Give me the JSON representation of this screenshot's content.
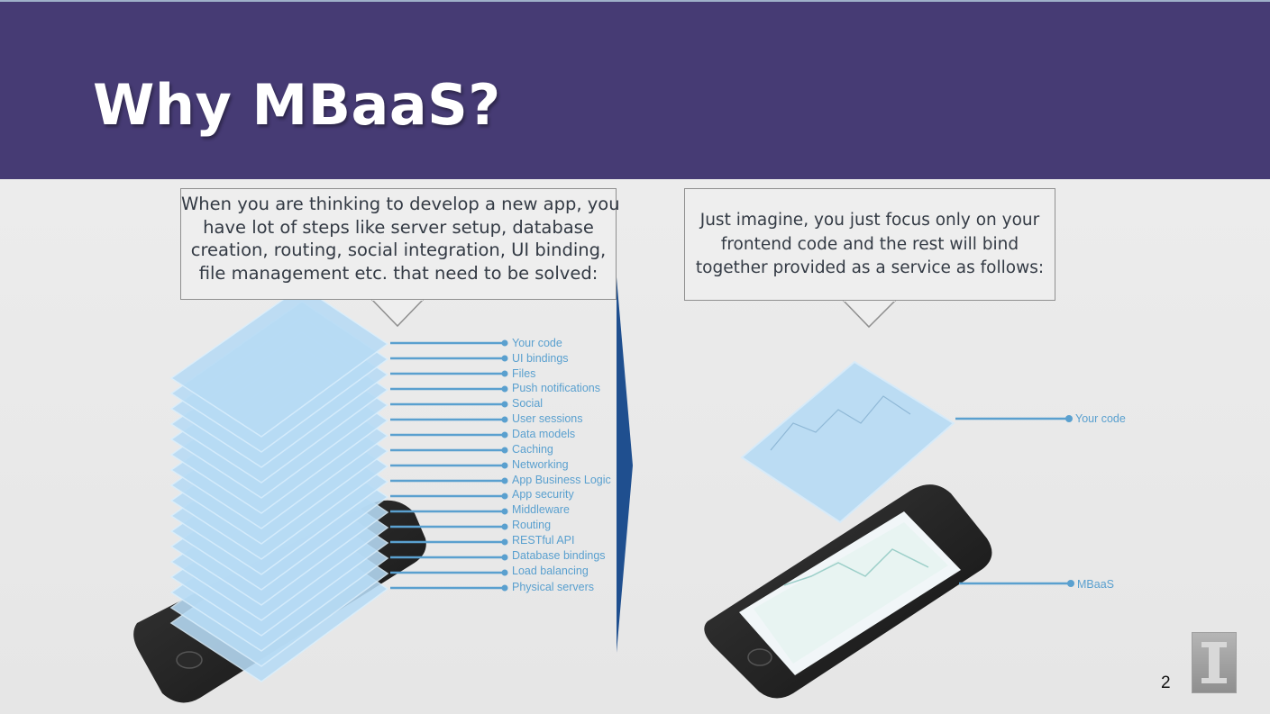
{
  "slide": {
    "title": "Why MBaaS?",
    "page_number": "2"
  },
  "left_callout": {
    "lines": [
      "When you are thinking to develop a new app, you",
      "have lot of steps like server setup, database",
      "creation, routing, social integration, UI binding,",
      "file management etc. that need to be solved:"
    ]
  },
  "right_callout": {
    "lines": [
      "Just imagine, you just focus only on your",
      "frontend code and the rest will bind",
      "together provided as a service as follows:"
    ]
  },
  "stack_layers": [
    "Your code",
    "UI bindings",
    "Files",
    "Push notifications",
    "Social",
    "User sessions",
    "Data models",
    "Caching",
    "Networking",
    "App Business Logic",
    "App security",
    "Middleware",
    "Routing",
    "RESTful API",
    "Database bindings",
    "Load balancing",
    "Physical servers"
  ],
  "mbaas_layers": [
    "Your code",
    "MBaaS"
  ],
  "colors": {
    "title_bar": "#463b74",
    "label_blue": "#5aa0cf",
    "layer_blue": "#b7dbf5",
    "divider_blue": "#1f4f8f"
  }
}
